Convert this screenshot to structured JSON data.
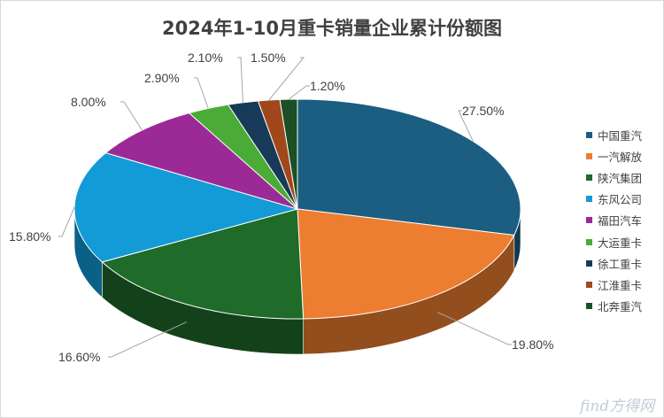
{
  "chart_data": {
    "type": "pie",
    "title": "2024年1-10月重卡销量企业累计份额图",
    "categories": [
      "中国重汽",
      "一汽解放",
      "陕汽集团",
      "东风公司",
      "福田汽车",
      "大运重卡",
      "徐工重卡",
      "江淮重卡",
      "北奔重汽"
    ],
    "values": [
      27.5,
      19.8,
      16.6,
      15.8,
      8.0,
      2.9,
      2.1,
      1.5,
      1.2
    ],
    "value_labels": [
      "27.50%",
      "19.80%",
      "16.60%",
      "15.80%",
      "8.00%",
      "2.90%",
      "2.10%",
      "1.50%",
      "1.20%"
    ],
    "colors": [
      "#1b5e82",
      "#ed7d31",
      "#1e6b2a",
      "#129bd6",
      "#9b2a97",
      "#4aac36",
      "#173a58",
      "#a0481c",
      "#1b4f25"
    ],
    "legend_position": "right",
    "style": "3d"
  },
  "watermark": "find方得网"
}
